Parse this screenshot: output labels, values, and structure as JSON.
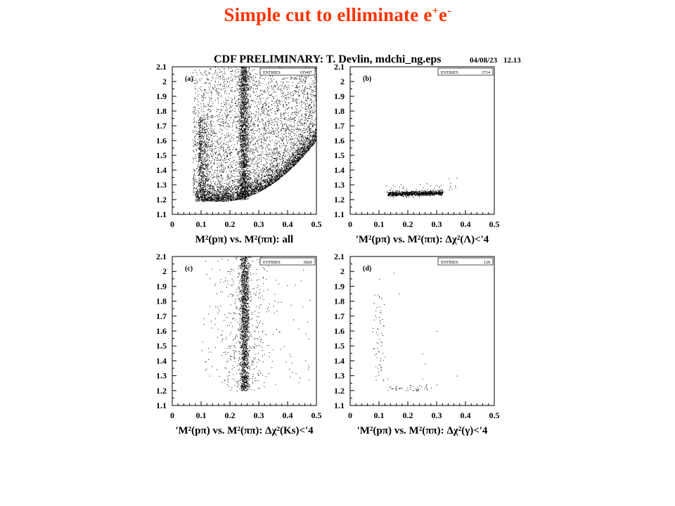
{
  "slide": {
    "title_main": "Simple cut to elliminate e",
    "title_sup1": "+",
    "title_e": "e",
    "title_sup2": "-",
    "accent_color": "#ff3300"
  },
  "figure": {
    "header_left": "CDF PRELIMINARY: T. Devlin, mdchi_ng.eps",
    "header_date": "04/08/23",
    "header_time": "12.13",
    "stats_label": "ENTRIES"
  },
  "chart_data": [
    {
      "type": "scatter",
      "panel": "(a)",
      "entries": "105497",
      "xlabel": "M²(pπ) vs. M²(ππ): all",
      "xlim": [
        0,
        0.5
      ],
      "ylim": [
        1.1,
        2.1
      ],
      "x_ticks": [
        "0",
        "0.1",
        "0.2",
        "0.3",
        "0.4",
        "0.5"
      ],
      "y_ticks": [
        "1.1",
        "1.2",
        "1.3",
        "1.4",
        "1.5",
        "1.6",
        "1.7",
        "1.8",
        "1.9",
        "2",
        "2.1"
      ],
      "density": "very high; vertical band at x≈0.25, lower edge y≈1.2 curving up to x≈0.5,y≈1.65, dense region x 0.08–0.5"
    },
    {
      "type": "scatter",
      "panel": "(b)",
      "entries": "3714",
      "xlabel": "'M²(pπ) vs. M²(ππ): Δχ²(Λ)<'4",
      "xlim": [
        0,
        0.5
      ],
      "ylim": [
        1.1,
        2.1
      ],
      "x_ticks": [
        "0",
        "0.1",
        "0.2",
        "0.3",
        "0.4",
        "0.5"
      ],
      "y_ticks": [
        "1.1",
        "1.2",
        "1.3",
        "1.4",
        "1.5",
        "1.6",
        "1.7",
        "1.8",
        "1.9",
        "2",
        "2.1"
      ],
      "density": "horizontal band at y≈1.24 from x≈0.12 to x≈0.32"
    },
    {
      "type": "scatter",
      "panel": "(c)",
      "entries": "6820",
      "xlabel": "'M²(pπ) vs. M²(ππ): Δχ²(Ks)<'4",
      "xlim": [
        0,
        0.5
      ],
      "ylim": [
        1.1,
        2.1
      ],
      "x_ticks": [
        "0",
        "0.1",
        "0.2",
        "0.3",
        "0.4",
        "0.5"
      ],
      "y_ticks": [
        "1.1",
        "1.2",
        "1.3",
        "1.4",
        "1.5",
        "1.6",
        "1.7",
        "1.8",
        "1.9",
        "2",
        "2.1"
      ],
      "density": "vertical band at x≈0.25 from y≈1.2 to 2.1"
    },
    {
      "type": "scatter",
      "panel": "(d)",
      "entries": "128",
      "xlabel": "'M²(pπ) vs. M²(ππ): Δχ²(γ)<'4",
      "xlim": [
        0,
        0.5
      ],
      "ylim": [
        1.1,
        2.1
      ],
      "x_ticks": [
        "0",
        "0.1",
        "0.2",
        "0.3",
        "0.4",
        "0.5"
      ],
      "y_ticks": [
        "1.1",
        "1.2",
        "1.3",
        "1.4",
        "1.5",
        "1.6",
        "1.7",
        "1.8",
        "1.9",
        "2",
        "2.1"
      ],
      "density": "sparse points, x≈0.1–0.3, curving band near y≈1.2"
    }
  ]
}
